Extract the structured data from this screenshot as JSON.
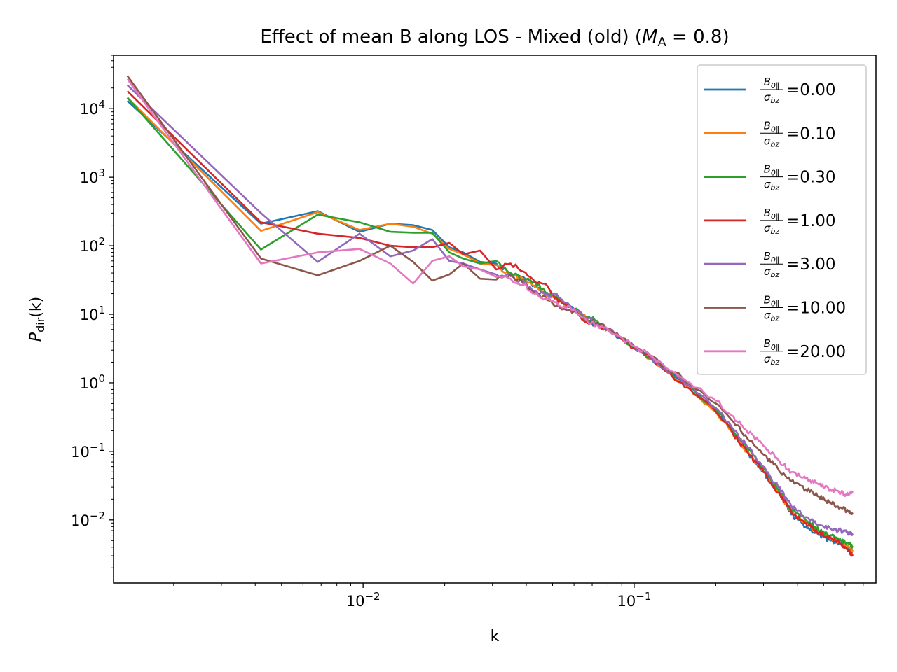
{
  "chart_data": {
    "type": "line",
    "title": "Effect of mean B along LOS - Mixed (old) (M_A = 0.8)",
    "title_parts": {
      "prefix": "Effect of mean B along LOS - Mixed (old) (",
      "var": "M",
      "sub": "A",
      "suffix": " = 0.8)"
    },
    "xlabel": "k",
    "ylabel": "P_dir(k)",
    "ylabel_parts": {
      "var": "P",
      "sub": "dir",
      "suffix": "(k)"
    },
    "xscale": "log",
    "yscale": "log",
    "xlim": [
      0.0012,
      0.78
    ],
    "ylim": [
      0.0012,
      60000
    ],
    "x_ticks": [
      {
        "value": 0.01,
        "base": "10",
        "exp": "−2"
      },
      {
        "value": 0.1,
        "base": "10",
        "exp": "−1"
      }
    ],
    "y_ticks": [
      {
        "value": 0.01,
        "base": "10",
        "exp": "−2"
      },
      {
        "value": 0.1,
        "base": "10",
        "exp": "−1"
      },
      {
        "value": 1,
        "base": "10",
        "exp": "0"
      },
      {
        "value": 10,
        "base": "10",
        "exp": "1"
      },
      {
        "value": 100,
        "base": "10",
        "exp": "2"
      },
      {
        "value": 1000,
        "base": "10",
        "exp": "3"
      },
      {
        "value": 10000,
        "base": "10",
        "exp": "4"
      }
    ],
    "legend_position": "upper right",
    "legend_label_parts": {
      "num": "B",
      "num_sub": "0∥",
      "den": "σ",
      "den_sub": "bz"
    },
    "grid": false,
    "series": [
      {
        "name": "=0.00",
        "color": "#1f77b4",
        "x": [
          0.00135,
          0.0042,
          0.0068,
          0.0097,
          0.0126,
          0.0153,
          0.018,
          0.0208,
          0.0234,
          0.027,
          0.031,
          0.035,
          0.039,
          0.043,
          0.047,
          0.051,
          0.055,
          0.06,
          0.067,
          0.073,
          0.08,
          0.088,
          0.1,
          0.115,
          0.13,
          0.15,
          0.17,
          0.2,
          0.23,
          0.26,
          0.3,
          0.34,
          0.38,
          0.43,
          0.48,
          0.53,
          0.58,
          0.62,
          0.64
        ],
        "y": [
          13000,
          210,
          320,
          160,
          210,
          200,
          170,
          95,
          80,
          58,
          55,
          38,
          35,
          26,
          19,
          17,
          15,
          12,
          8,
          7,
          6,
          4.5,
          3.2,
          2.3,
          1.6,
          1.1,
          0.7,
          0.4,
          0.2,
          0.1,
          0.05,
          0.025,
          0.012,
          0.008,
          0.006,
          0.005,
          0.0045,
          0.004,
          0.0035
        ]
      },
      {
        "name": "=0.10",
        "color": "#ff7f0e",
        "x": [
          0.00135,
          0.0042,
          0.0068,
          0.0097,
          0.0126,
          0.0153,
          0.018,
          0.0208,
          0.0234,
          0.027,
          0.031,
          0.035,
          0.039,
          0.043,
          0.047,
          0.051,
          0.055,
          0.06,
          0.067,
          0.073,
          0.08,
          0.088,
          0.1,
          0.115,
          0.13,
          0.15,
          0.17,
          0.2,
          0.23,
          0.26,
          0.3,
          0.34,
          0.38,
          0.43,
          0.48,
          0.53,
          0.58,
          0.62,
          0.64
        ],
        "y": [
          14500,
          165,
          310,
          170,
          210,
          190,
          150,
          90,
          75,
          55,
          52,
          36,
          33,
          25,
          20,
          17,
          14,
          12,
          8.5,
          7,
          6,
          4.6,
          3.3,
          2.2,
          1.5,
          1.0,
          0.65,
          0.38,
          0.19,
          0.1,
          0.05,
          0.026,
          0.013,
          0.009,
          0.0065,
          0.0055,
          0.0045,
          0.004,
          0.0035
        ]
      },
      {
        "name": "=0.30",
        "color": "#2ca02c",
        "x": [
          0.00135,
          0.0042,
          0.0068,
          0.0097,
          0.0126,
          0.0153,
          0.018,
          0.0208,
          0.0234,
          0.027,
          0.031,
          0.035,
          0.039,
          0.043,
          0.047,
          0.051,
          0.055,
          0.06,
          0.067,
          0.073,
          0.08,
          0.088,
          0.1,
          0.115,
          0.13,
          0.15,
          0.17,
          0.2,
          0.23,
          0.26,
          0.3,
          0.34,
          0.38,
          0.43,
          0.48,
          0.53,
          0.58,
          0.62,
          0.64
        ],
        "y": [
          14500,
          88,
          285,
          220,
          160,
          155,
          155,
          80,
          65,
          55,
          60,
          40,
          32,
          30,
          21,
          18,
          15,
          12,
          9,
          8,
          6,
          4.7,
          3.3,
          2.3,
          1.6,
          1.1,
          0.7,
          0.42,
          0.21,
          0.11,
          0.055,
          0.028,
          0.014,
          0.01,
          0.007,
          0.006,
          0.005,
          0.0045,
          0.004
        ]
      },
      {
        "name": "=1.00",
        "color": "#d62728",
        "x": [
          0.00135,
          0.0042,
          0.0068,
          0.0097,
          0.0126,
          0.0153,
          0.018,
          0.0208,
          0.0234,
          0.027,
          0.031,
          0.035,
          0.039,
          0.043,
          0.047,
          0.051,
          0.055,
          0.06,
          0.067,
          0.073,
          0.08,
          0.088,
          0.1,
          0.115,
          0.13,
          0.15,
          0.17,
          0.2,
          0.23,
          0.26,
          0.3,
          0.34,
          0.38,
          0.43,
          0.48,
          0.53,
          0.58,
          0.62,
          0.64
        ],
        "y": [
          18000,
          220,
          150,
          130,
          100,
          95,
          95,
          110,
          75,
          85,
          45,
          55,
          42,
          30,
          28,
          17,
          14,
          12,
          7.5,
          7,
          6,
          4.6,
          3.2,
          2.3,
          1.5,
          1.0,
          0.65,
          0.38,
          0.19,
          0.1,
          0.05,
          0.025,
          0.013,
          0.009,
          0.0065,
          0.0055,
          0.0045,
          0.0035,
          0.003
        ]
      },
      {
        "name": "=3.00",
        "color": "#9467bd",
        "x": [
          0.00135,
          0.0042,
          0.0068,
          0.0097,
          0.0126,
          0.0153,
          0.018,
          0.0208,
          0.0234,
          0.027,
          0.031,
          0.035,
          0.039,
          0.043,
          0.047,
          0.051,
          0.055,
          0.06,
          0.067,
          0.073,
          0.08,
          0.088,
          0.1,
          0.115,
          0.13,
          0.15,
          0.17,
          0.2,
          0.23,
          0.26,
          0.3,
          0.34,
          0.38,
          0.43,
          0.48,
          0.53,
          0.58,
          0.62,
          0.64
        ],
        "y": [
          22000,
          300,
          58,
          150,
          70,
          85,
          125,
          60,
          55,
          45,
          38,
          36,
          30,
          22,
          19,
          20,
          15,
          12,
          8.5,
          7.5,
          6,
          4.8,
          3.4,
          2.4,
          1.6,
          1.1,
          0.72,
          0.43,
          0.22,
          0.12,
          0.06,
          0.03,
          0.016,
          0.011,
          0.0085,
          0.0075,
          0.007,
          0.0065,
          0.006
        ]
      },
      {
        "name": "=10.00",
        "color": "#8c564b",
        "x": [
          0.00135,
          0.0042,
          0.0068,
          0.0097,
          0.0126,
          0.0153,
          0.018,
          0.0208,
          0.0234,
          0.027,
          0.031,
          0.035,
          0.039,
          0.043,
          0.047,
          0.051,
          0.055,
          0.06,
          0.067,
          0.073,
          0.08,
          0.088,
          0.1,
          0.115,
          0.13,
          0.15,
          0.17,
          0.2,
          0.23,
          0.26,
          0.3,
          0.34,
          0.38,
          0.43,
          0.48,
          0.53,
          0.58,
          0.62,
          0.64
        ],
        "y": [
          30000,
          65,
          37,
          60,
          100,
          58,
          31,
          38,
          55,
          33,
          32,
          38,
          28,
          20,
          18,
          13,
          12,
          11,
          8,
          7.5,
          6,
          4.8,
          3.4,
          2.5,
          1.7,
          1.2,
          0.8,
          0.5,
          0.28,
          0.16,
          0.09,
          0.055,
          0.037,
          0.028,
          0.022,
          0.018,
          0.015,
          0.013,
          0.012
        ]
      },
      {
        "name": "=20.00",
        "color": "#e377c2",
        "x": [
          0.00135,
          0.0042,
          0.0068,
          0.0097,
          0.0126,
          0.0153,
          0.018,
          0.0208,
          0.0234,
          0.027,
          0.031,
          0.035,
          0.039,
          0.043,
          0.047,
          0.051,
          0.055,
          0.06,
          0.067,
          0.073,
          0.08,
          0.088,
          0.1,
          0.115,
          0.13,
          0.15,
          0.17,
          0.2,
          0.23,
          0.26,
          0.3,
          0.34,
          0.38,
          0.43,
          0.48,
          0.53,
          0.58,
          0.62,
          0.64
        ],
        "y": [
          27000,
          55,
          80,
          90,
          55,
          28,
          60,
          70,
          50,
          45,
          35,
          33,
          27,
          20,
          17,
          15,
          13,
          12,
          8,
          7,
          6,
          4.8,
          3.4,
          2.5,
          1.7,
          1.2,
          0.85,
          0.55,
          0.33,
          0.2,
          0.12,
          0.075,
          0.05,
          0.04,
          0.033,
          0.028,
          0.025,
          0.023,
          0.025
        ]
      }
    ]
  }
}
